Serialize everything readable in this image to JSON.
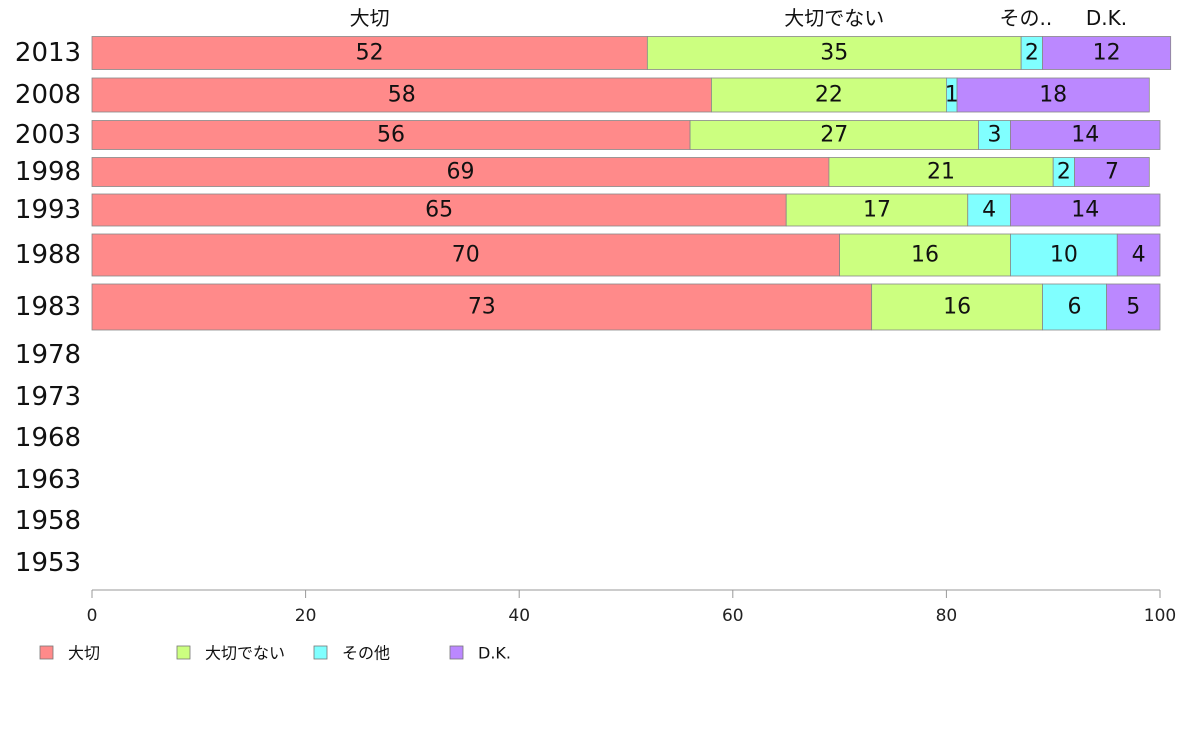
{
  "chart_data": {
    "type": "bar",
    "orientation": "horizontal",
    "stacked": true,
    "categories": [
      "2013",
      "2008",
      "2003",
      "1998",
      "1993",
      "1988",
      "1983",
      "1978",
      "1973",
      "1968",
      "1963",
      "1958",
      "1953"
    ],
    "series": [
      {
        "name": "大切",
        "header": "大切",
        "color": "#ff8a8a",
        "values": [
          52,
          58,
          56,
          69,
          65,
          70,
          73,
          null,
          null,
          null,
          null,
          null,
          null
        ]
      },
      {
        "name": "大切でない",
        "header": "大切でない",
        "color": "#ccff80",
        "values": [
          35,
          22,
          27,
          21,
          17,
          16,
          16,
          null,
          null,
          null,
          null,
          null,
          null
        ]
      },
      {
        "name": "その他",
        "header": "その..",
        "color": "#80ffff",
        "values": [
          2,
          1,
          3,
          2,
          4,
          10,
          6,
          null,
          null,
          null,
          null,
          null,
          null
        ]
      },
      {
        "name": "D.K.",
        "header": "D.K.",
        "color": "#bb88ff",
        "values": [
          12,
          18,
          14,
          7,
          14,
          4,
          5,
          null,
          null,
          null,
          null,
          null,
          null
        ]
      }
    ],
    "xlim": [
      0,
      100
    ],
    "xticks": [
      "0",
      "20",
      "40",
      "60",
      "80",
      "100"
    ],
    "legend_position": "bottom-left",
    "grid": false
  }
}
